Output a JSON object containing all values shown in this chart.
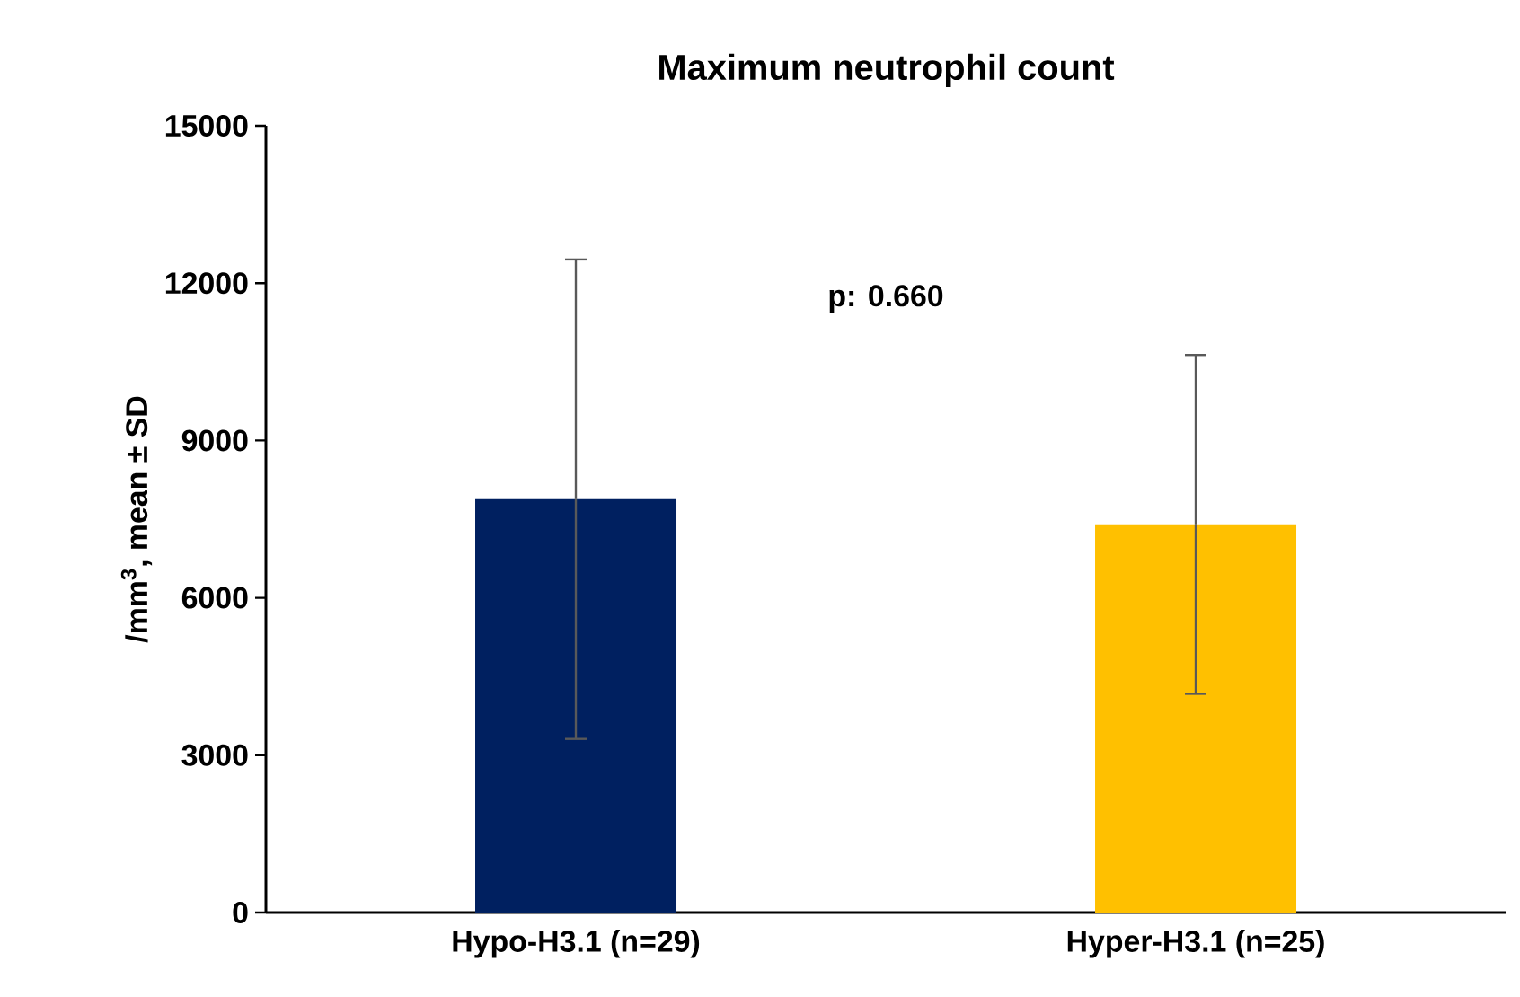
{
  "chart_data": {
    "type": "bar",
    "title": "Maximum neutrophil count",
    "ylabel": "/mm$^{3}$, mean ± SD",
    "categories": [
      "Hypo-H3.1 (n=29)",
      "Hyper-H3.1 (n=25)"
    ],
    "values": [
      7880,
      7400
    ],
    "errors": [
      4570,
      3230
    ],
    "colors": [
      "#002060",
      "#ffc000"
    ],
    "ylim": [
      0,
      15000
    ],
    "yticks": [
      0,
      3000,
      6000,
      9000,
      12000,
      15000
    ],
    "annotations": [
      "p: 0.660"
    ],
    "grid": false
  }
}
